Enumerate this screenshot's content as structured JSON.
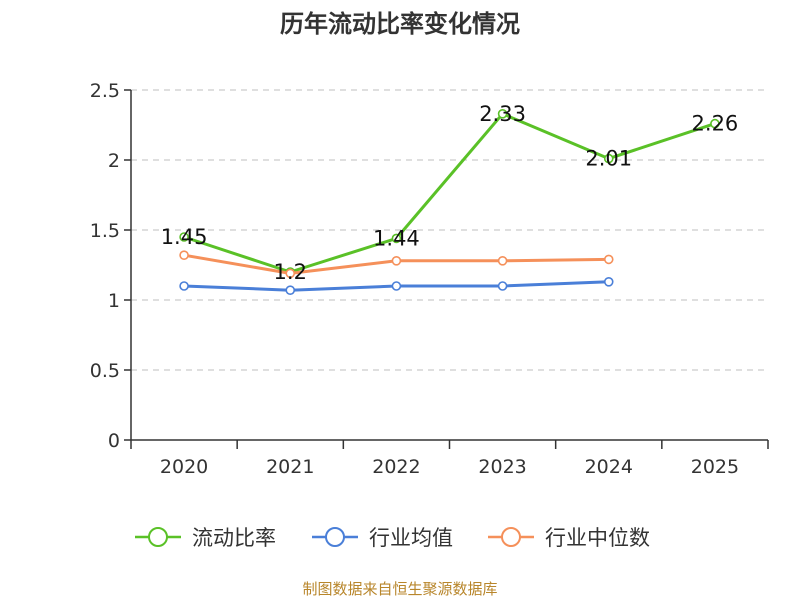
{
  "chart_data": {
    "type": "line",
    "title": "历年流动比率变化情况",
    "categories": [
      "2020",
      "2021",
      "2022",
      "2023",
      "2024",
      "2025"
    ],
    "ylim": [
      0,
      2.5
    ],
    "yticks": [
      "0",
      "0.5",
      "1",
      "1.5",
      "2",
      "2.5"
    ],
    "grid": true,
    "legend_position": "bottom",
    "series": [
      {
        "name": "流动比率",
        "color": "#5ac127",
        "values": [
          1.45,
          1.2,
          1.44,
          2.33,
          2.01,
          2.26
        ],
        "labels": [
          "1.45",
          "1.2",
          "1.44",
          "2.33",
          "2.01",
          "2.26"
        ]
      },
      {
        "name": "行业均值",
        "color": "#4a7fd8",
        "values": [
          1.1,
          1.07,
          1.1,
          1.1,
          1.13,
          null
        ]
      },
      {
        "name": "行业中位数",
        "color": "#f5905a",
        "values": [
          1.32,
          1.19,
          1.28,
          1.28,
          1.29,
          null
        ]
      }
    ]
  },
  "footer": {
    "source": "制图数据来自恒生聚源数据库"
  }
}
